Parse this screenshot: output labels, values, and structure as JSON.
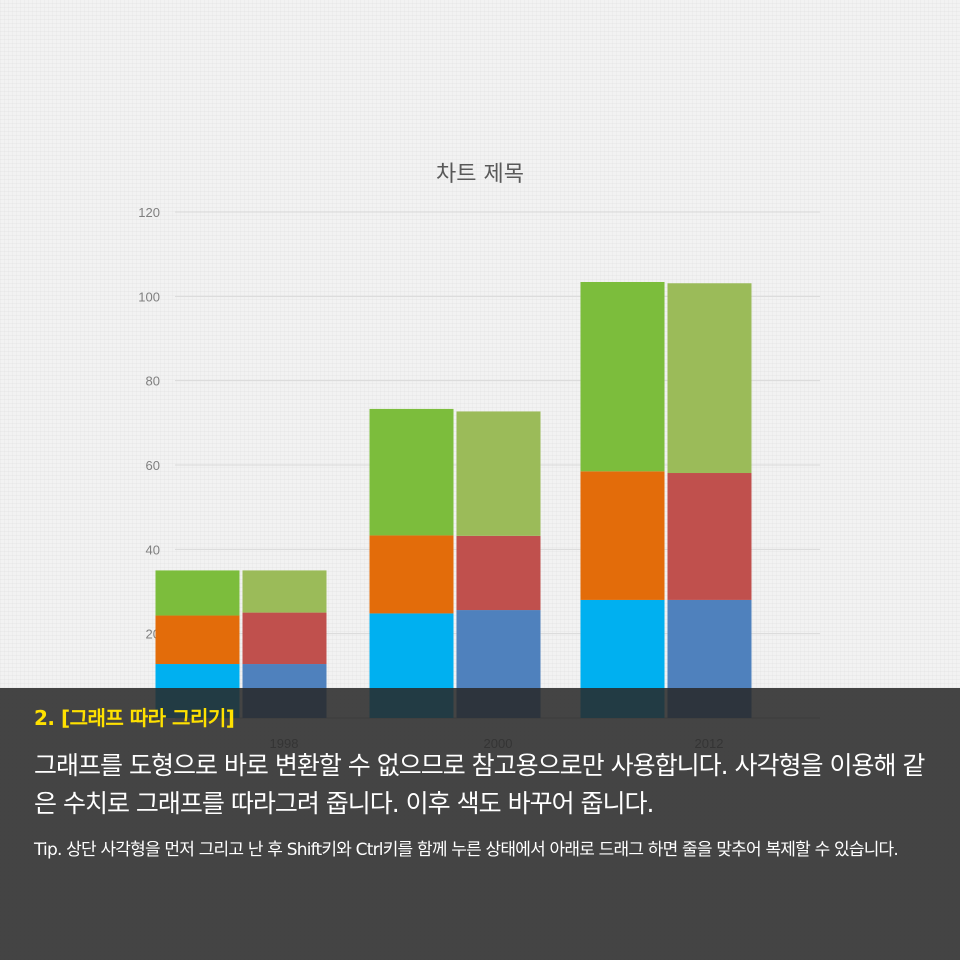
{
  "chart_data": {
    "type": "bar",
    "stacked": true,
    "title": "차트 제목",
    "categories": [
      "1998",
      "2000",
      "2012"
    ],
    "ylim": [
      0,
      120
    ],
    "yticks": [
      0,
      20,
      40,
      60,
      80,
      100,
      120
    ],
    "grid": true,
    "groups": [
      {
        "name": "original",
        "colors": [
          "#00b0f0",
          "#e36c0a",
          "#7cbd3c"
        ],
        "segments": [
          [
            12.8,
            11.5,
            10.7
          ],
          [
            24.8,
            18.5,
            30
          ],
          [
            28,
            30.5,
            44.9
          ]
        ]
      },
      {
        "name": "traced",
        "colors": [
          "#4f81bd",
          "#c0504d",
          "#9bbb59"
        ],
        "segments": [
          [
            12.8,
            12.2,
            10
          ],
          [
            25.6,
            17.6,
            29.5
          ],
          [
            28,
            30.1,
            45
          ]
        ]
      }
    ]
  },
  "caption": {
    "heading": "2. [그래프 따라 그리기]",
    "body": "그래프를 도형으로 바로 변환할 수 없으므로 참고용으로만 사용합니다. 사각형을 이용해 같은 수치로 그래프를 따라그려 줍니다. 이후 색도 바꾸어 줍니다.",
    "tip": "Tip. 상단 사각형을 먼저 그리고 난 후 Shift키와 Ctrl키를 함께 누른 상태에서 아래로 드래그 하면 줄을 맞추어 복제할 수 있습니다."
  }
}
